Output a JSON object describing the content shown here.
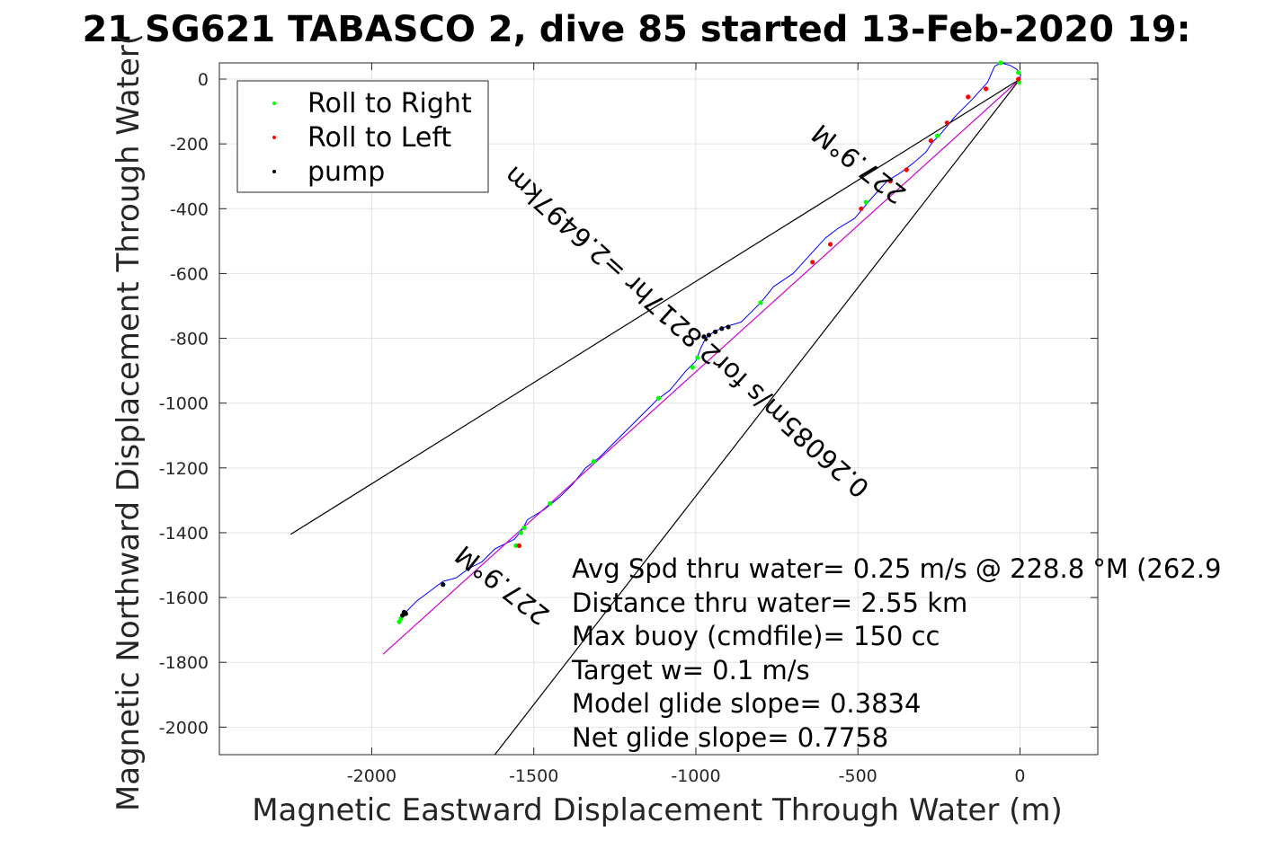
{
  "figure": {
    "title": "21 SG621 TABASCO 2, dive 85 started 13-Feb-2020 19:"
  },
  "chart_data": {
    "type": "line",
    "title": "21 SG621 TABASCO 2, dive 85 started 13-Feb-2020 19:",
    "xlabel": "Magnetic Eastward Displacement Through Water (m)",
    "ylabel": "Magnetic Northward Displacement Through Water(",
    "xlim": [
      -2470,
      240
    ],
    "ylim": [
      -2085,
      50
    ],
    "xticks": [
      -2000,
      -1500,
      -1000,
      -500,
      0
    ],
    "yticks": [
      0,
      -200,
      -400,
      -600,
      -800,
      -1000,
      -1200,
      -1400,
      -1600,
      -1800,
      -2000
    ],
    "grid": true,
    "legend": {
      "placement": "top-left",
      "entries": [
        {
          "label": "Roll to Right",
          "color": "#00ff00"
        },
        {
          "label": "Roll to Left",
          "color": "#ff0000"
        },
        {
          "label": "pump",
          "color": "#000000"
        }
      ]
    },
    "series": [
      {
        "role": "track",
        "color": "#0000ff",
        "points": [
          [
            0,
            0
          ],
          [
            2,
            15
          ],
          [
            -10,
            30
          ],
          [
            -30,
            42
          ],
          [
            -58,
            50
          ],
          [
            -78,
            40
          ],
          [
            -100,
            -10
          ],
          [
            -145,
            -60
          ],
          [
            -200,
            -115
          ],
          [
            -245,
            -170
          ],
          [
            -270,
            -195
          ],
          [
            -290,
            -225
          ],
          [
            -330,
            -260
          ],
          [
            -370,
            -290
          ],
          [
            -410,
            -315
          ],
          [
            -460,
            -370
          ],
          [
            -510,
            -430
          ],
          [
            -560,
            -460
          ],
          [
            -600,
            -490
          ],
          [
            -650,
            -545
          ],
          [
            -700,
            -600
          ],
          [
            -760,
            -640
          ],
          [
            -800,
            -690
          ],
          [
            -830,
            -720
          ],
          [
            -860,
            -750
          ],
          [
            -910,
            -765
          ],
          [
            -945,
            -780
          ],
          [
            -970,
            -800
          ],
          [
            -985,
            -830
          ],
          [
            -1000,
            -870
          ],
          [
            -1030,
            -900
          ],
          [
            -1080,
            -960
          ],
          [
            -1120,
            -990
          ],
          [
            -1160,
            -1030
          ],
          [
            -1210,
            -1080
          ],
          [
            -1260,
            -1130
          ],
          [
            -1300,
            -1170
          ],
          [
            -1340,
            -1200
          ],
          [
            -1380,
            -1250
          ],
          [
            -1420,
            -1290
          ],
          [
            -1470,
            -1330
          ],
          [
            -1520,
            -1360
          ],
          [
            -1535,
            -1390
          ],
          [
            -1560,
            -1420
          ],
          [
            -1620,
            -1450
          ],
          [
            -1660,
            -1490
          ],
          [
            -1700,
            -1510
          ],
          [
            -1740,
            -1540
          ],
          [
            -1780,
            -1550
          ],
          [
            -1820,
            -1580
          ],
          [
            -1860,
            -1610
          ],
          [
            -1890,
            -1640
          ],
          [
            -1905,
            -1660
          ],
          [
            -1915,
            -1670
          ]
        ]
      },
      {
        "role": "magenta-line",
        "color": "#cc00cc",
        "points": [
          [
            0,
            0
          ],
          [
            -1965,
            -1775
          ]
        ]
      },
      {
        "role": "black-line-upper",
        "color": "#000000",
        "points": [
          [
            0,
            0
          ],
          [
            -2250,
            -1405
          ]
        ]
      },
      {
        "role": "black-line-lower",
        "color": "#000000",
        "points": [
          [
            0,
            0
          ],
          [
            -1620,
            -2085
          ]
        ]
      },
      {
        "name": "Roll to Right",
        "color": "#00ff00",
        "marker": "dot",
        "points": [
          [
            -2,
            -10
          ],
          [
            -5,
            20
          ],
          [
            -60,
            50
          ],
          [
            -255,
            -175
          ],
          [
            -475,
            -380
          ],
          [
            -800,
            -690
          ],
          [
            -995,
            -860
          ],
          [
            -1010,
            -890
          ],
          [
            -1115,
            -985
          ],
          [
            -1315,
            -1180
          ],
          [
            -1450,
            -1310
          ],
          [
            -1530,
            -1385
          ],
          [
            -1540,
            -1400
          ],
          [
            -1555,
            -1440
          ],
          [
            -1910,
            -1665
          ],
          [
            -1915,
            -1675
          ]
        ]
      },
      {
        "name": "Roll to Left",
        "color": "#ff0000",
        "marker": "dot",
        "points": [
          [
            -5,
            0
          ],
          [
            -105,
            -30
          ],
          [
            -160,
            -55
          ],
          [
            -225,
            -135
          ],
          [
            -275,
            -190
          ],
          [
            -350,
            -280
          ],
          [
            -400,
            -315
          ],
          [
            -490,
            -400
          ],
          [
            -585,
            -510
          ],
          [
            -640,
            -565
          ],
          [
            -1545,
            -1440
          ]
        ]
      },
      {
        "name": "pump",
        "color": "#000000",
        "marker": "dot",
        "points": [
          [
            -900,
            -765
          ],
          [
            -920,
            -770
          ],
          [
            -940,
            -780
          ],
          [
            -960,
            -790
          ],
          [
            -975,
            -795
          ],
          [
            -1780,
            -1560
          ],
          [
            -1895,
            -1650
          ],
          [
            -1900,
            -1645
          ],
          [
            -1905,
            -1655
          ]
        ]
      }
    ],
    "annotations": [
      {
        "text": "227.9°M",
        "x": -480,
        "y": -240,
        "rotation": 218
      },
      {
        "text": "0.26085m/s for2.8217hr =2.6497km",
        "x": -1010,
        "y": -760,
        "rotation": 222
      },
      {
        "text": "227.9°M",
        "x": -1580,
        "y": -1540,
        "rotation": 218
      }
    ],
    "stats": [
      "Avg Spd thru water=  0.25 m/s @ 228.8 °M (262.9",
      "Distance thru water=  2.55 km",
      "Max buoy (cmdfile)= 150 cc",
      "Target w= 0.1 m/s",
      "Model glide slope= 0.3834",
      "Net glide slope= 0.7758"
    ]
  }
}
